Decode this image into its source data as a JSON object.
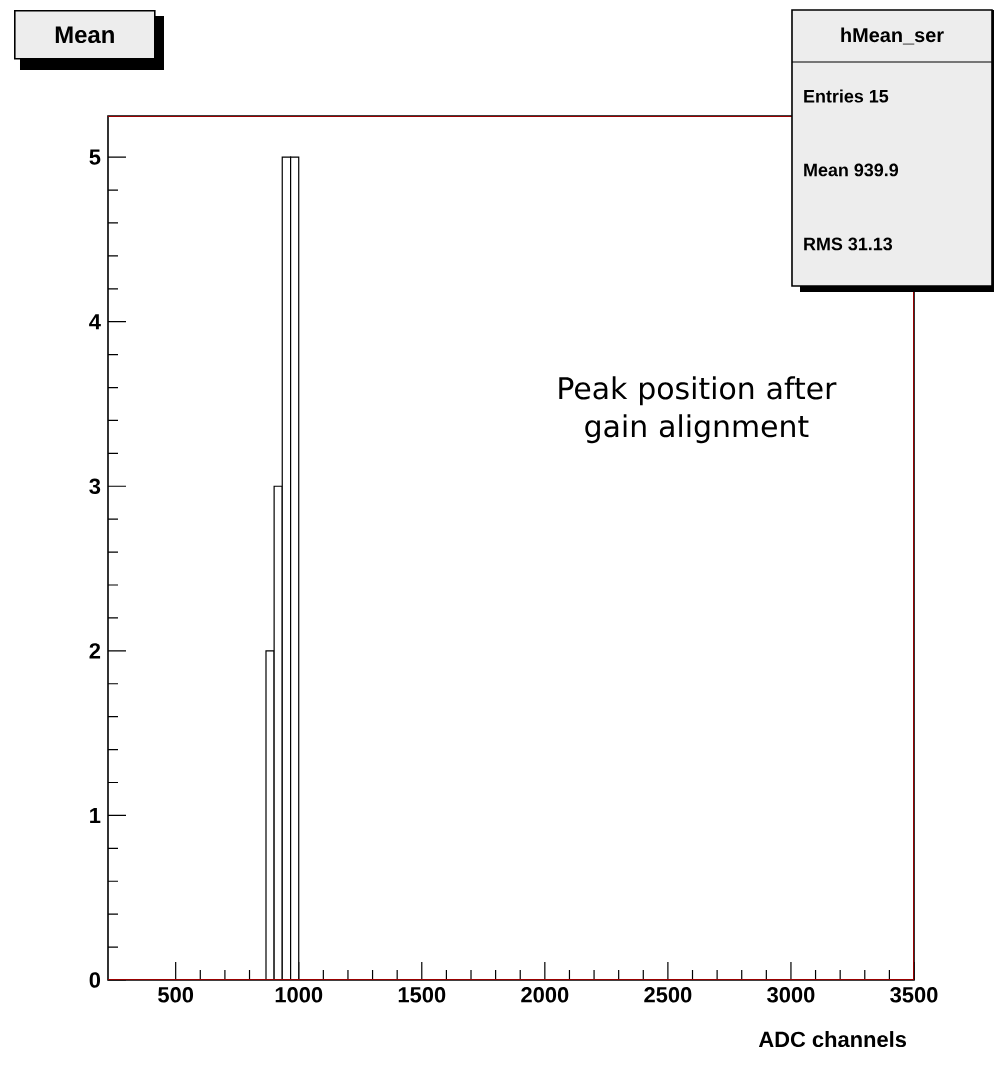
{
  "chart_data": {
    "type": "histogram",
    "title": "Mean",
    "xlabel": "ADC channels",
    "bins": [
      867,
      900,
      933,
      967,
      1000
    ],
    "values": [
      2,
      3,
      5,
      5
    ],
    "color": "#000000",
    "xlim": [
      225,
      3500
    ],
    "xticks": [
      500,
      1000,
      1500,
      2000,
      2500,
      3000,
      3500
    ],
    "ylim": [
      0,
      5.25
    ],
    "yticks": [
      0,
      1,
      2,
      3,
      4,
      5
    ],
    "annotations": [
      "hMean_ser",
      "Entries 15",
      "Mean 939.9",
      "RMS 31.13",
      "Peak position after gain alignment"
    ]
  }
}
